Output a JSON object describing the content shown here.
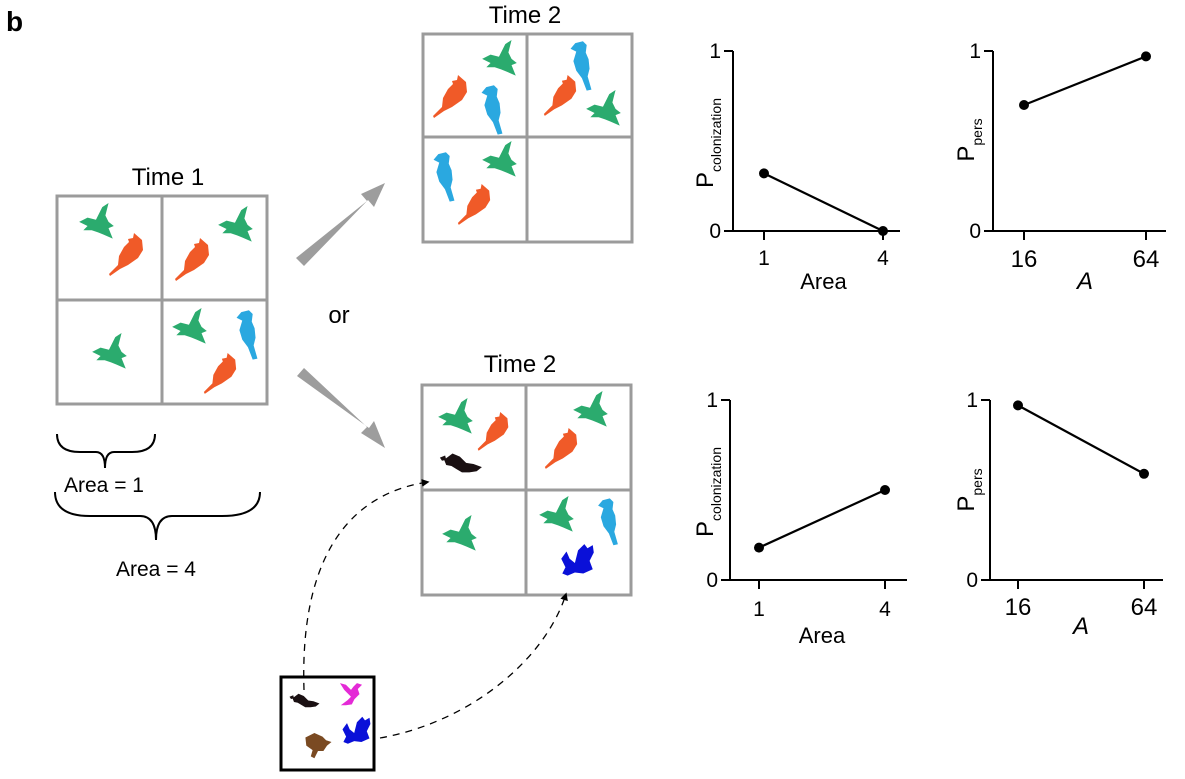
{
  "panel_label": "b",
  "time1": {
    "title": "Time 1"
  },
  "time2_top": {
    "title": "Time 2"
  },
  "time2_bottom": {
    "title": "Time 2"
  },
  "or_label": "or",
  "brace_small_label": "Area = 1",
  "brace_large_label": "Area = 4",
  "colors": {
    "green": "#2bab6e",
    "orange": "#f05a28",
    "light_blue": "#2aa8e0",
    "black_bird": "#1a1012",
    "magenta": "#e42ad6",
    "brown": "#7a4a22",
    "dark_blue": "#0a10d8",
    "grid_gray": "#9b9b9b",
    "arrow_gray": "#9d9d9d"
  },
  "chart_data": [
    {
      "type": "line",
      "id": "top-colonization",
      "ylabel_main": "P",
      "ylabel_sub": "colonization",
      "xlabel": "Area",
      "x": [
        1,
        4
      ],
      "y": [
        0.32,
        0.0
      ],
      "xticks": [
        "1",
        "4"
      ],
      "yticks": [
        "0",
        "1"
      ],
      "ylim": [
        0,
        1
      ]
    },
    {
      "type": "line",
      "id": "top-persistence",
      "ylabel_main": "P",
      "ylabel_sub": "pers",
      "xlabel": "A",
      "x": [
        16,
        64
      ],
      "y": [
        0.7,
        0.97
      ],
      "xticks": [
        "16",
        "64"
      ],
      "yticks": [
        "0",
        "1"
      ],
      "ylim": [
        0,
        1
      ]
    },
    {
      "type": "line",
      "id": "bottom-colonization",
      "ylabel_main": "P",
      "ylabel_sub": "colonization",
      "xlabel": "Area",
      "x": [
        1,
        4
      ],
      "y": [
        0.18,
        0.5
      ],
      "xticks": [
        "1",
        "4"
      ],
      "yticks": [
        "0",
        "1"
      ],
      "ylim": [
        0,
        1
      ]
    },
    {
      "type": "line",
      "id": "bottom-persistence",
      "ylabel_main": "P",
      "ylabel_sub": "pers",
      "xlabel": "A",
      "x": [
        16,
        64
      ],
      "y": [
        0.97,
        0.59
      ],
      "xticks": [
        "16",
        "64"
      ],
      "yticks": [
        "0",
        "1"
      ],
      "ylim": [
        0,
        1
      ]
    }
  ]
}
